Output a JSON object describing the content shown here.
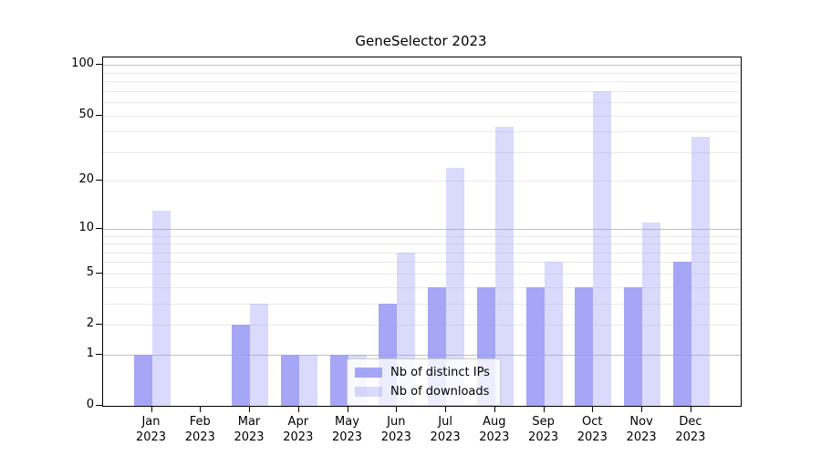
{
  "title": "GeneSelector 2023",
  "chart_data": {
    "type": "bar",
    "title": "GeneSelector 2023",
    "categories": [
      "Jan",
      "Feb",
      "Mar",
      "Apr",
      "May",
      "Jun",
      "Jul",
      "Aug",
      "Sep",
      "Oct",
      "Nov",
      "Dec"
    ],
    "category_year": "2023",
    "series": [
      {
        "name": "Nb of distinct IPs",
        "values": [
          1,
          0,
          2,
          1,
          1,
          3,
          4,
          4,
          4,
          4,
          4,
          6
        ],
        "color": "rgba(150,150,245,0.85)"
      },
      {
        "name": "Nb of downloads",
        "values": [
          13,
          0,
          3,
          1,
          1,
          7,
          24,
          43,
          6,
          70,
          11,
          37
        ],
        "color": "rgba(150,150,245,0.35)"
      }
    ],
    "xlabel": "",
    "ylabel": "",
    "yscale": "log1p",
    "ylim": [
      0,
      111
    ],
    "yticks": [
      0,
      1,
      2,
      5,
      10,
      20,
      50,
      100
    ],
    "major_gridlines": [
      1,
      10,
      100
    ],
    "minor_gridlines": [
      2,
      3,
      4,
      5,
      6,
      7,
      8,
      9,
      20,
      30,
      40,
      50,
      60,
      70,
      80,
      90
    ],
    "grid": true,
    "legend_position": "lower center"
  },
  "colors": {
    "bar_base": "#9696f5",
    "ips_fill": "rgba(150,150,245,0.85)",
    "downloads_fill": "rgba(150,150,245,0.35)",
    "major_grid": "#c0c0c0",
    "minor_grid": "#eaeaea",
    "axis": "#000000",
    "text": "#000000",
    "legend_border": "#cccccc"
  }
}
